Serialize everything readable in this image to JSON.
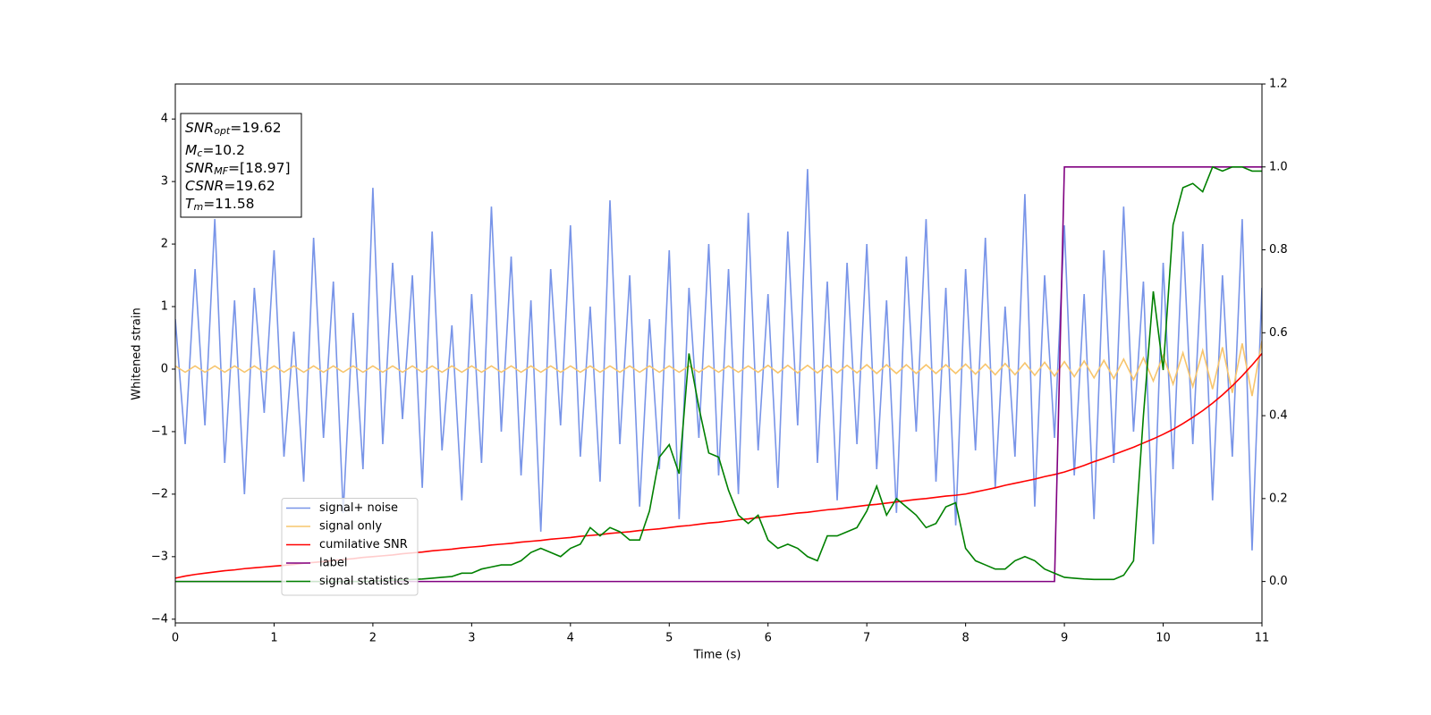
{
  "chart_data": {
    "type": "line",
    "xlabel": "Time (s)",
    "ylabel": "Whitened strain",
    "xlim": [
      0,
      11
    ],
    "xticks": [
      0,
      1,
      2,
      3,
      4,
      5,
      6,
      7,
      8,
      9,
      10,
      11
    ],
    "ylim": [
      -4.06,
      4.56
    ],
    "yticks": [
      {
        "value": -4,
        "label": "−4"
      },
      {
        "value": -3,
        "label": "−3"
      },
      {
        "value": -2,
        "label": "−2"
      },
      {
        "value": -1,
        "label": "−1"
      },
      0,
      1,
      2,
      3,
      4
    ],
    "y2lim": [
      -0.1,
      1.2
    ],
    "y2ticks": [
      {
        "value": 0,
        "label": "0.0"
      },
      0.2,
      0.4,
      0.6,
      0.8,
      {
        "value": 1,
        "label": "1.0"
      },
      1.2
    ],
    "legend_loc": "lower left",
    "annotation_box": [
      {
        "symbol": "SNR",
        "sub": "opt",
        "text": "=19.62"
      },
      {
        "symbol": "M",
        "sub": "c",
        "text": "=10.2"
      },
      {
        "symbol": "SNR",
        "sub": "MF",
        "text": "=[18.97]"
      },
      {
        "symbol": "CSNR",
        "text": "=19.62"
      },
      {
        "symbol": "T",
        "sub": "m",
        "text": "=11.58"
      }
    ],
    "x": [
      0,
      0.1,
      0.2,
      0.3,
      0.4,
      0.5,
      0.6,
      0.7,
      0.8,
      0.9,
      1,
      1.1,
      1.2,
      1.3,
      1.4,
      1.5,
      1.6,
      1.7,
      1.8,
      1.9,
      2,
      2.1,
      2.2,
      2.3,
      2.4,
      2.5,
      2.6,
      2.7,
      2.8,
      2.9,
      3,
      3.1,
      3.2,
      3.3,
      3.4,
      3.5,
      3.6,
      3.7,
      3.8,
      3.9,
      4,
      4.1,
      4.2,
      4.3,
      4.4,
      4.5,
      4.6,
      4.7,
      4.8,
      4.9,
      5,
      5.1,
      5.2,
      5.3,
      5.4,
      5.5,
      5.6,
      5.7,
      5.8,
      5.9,
      6,
      6.1,
      6.2,
      6.3,
      6.4,
      6.5,
      6.6,
      6.7,
      6.8,
      6.9,
      7,
      7.1,
      7.2,
      7.3,
      7.4,
      7.5,
      7.6,
      7.7,
      7.8,
      7.9,
      8,
      8.1,
      8.2,
      8.3,
      8.4,
      8.5,
      8.6,
      8.7,
      8.8,
      8.9,
      9,
      9.1,
      9.2,
      9.3,
      9.4,
      9.5,
      9.6,
      9.7,
      9.8,
      9.9,
      10,
      10.1,
      10.2,
      10.3,
      10.4,
      10.5,
      10.6,
      10.7,
      10.8,
      10.9,
      11
    ],
    "series": [
      {
        "name": "signal+ noise",
        "color": "#7894e8",
        "axis": "y",
        "values": [
          0.8,
          -1.2,
          1.6,
          -0.9,
          2.4,
          -1.5,
          1.1,
          -2.0,
          1.3,
          -0.7,
          1.9,
          -1.4,
          0.6,
          -1.8,
          2.1,
          -1.1,
          1.4,
          -2.3,
          0.9,
          -1.6,
          2.9,
          -1.2,
          1.7,
          -0.8,
          1.5,
          -1.9,
          2.2,
          -1.3,
          0.7,
          -2.1,
          1.2,
          -1.5,
          2.6,
          -1.0,
          1.8,
          -1.7,
          1.1,
          -2.6,
          1.6,
          -0.9,
          2.3,
          -1.4,
          1.0,
          -1.8,
          2.7,
          -1.2,
          1.5,
          -2.2,
          0.8,
          -1.6,
          1.9,
          -2.4,
          1.3,
          -1.1,
          2.0,
          -1.7,
          1.6,
          -2.0,
          2.5,
          -1.3,
          1.2,
          -1.9,
          2.2,
          -0.9,
          3.2,
          -1.5,
          1.4,
          -2.1,
          1.7,
          -1.2,
          2.0,
          -1.6,
          1.1,
          -2.3,
          1.8,
          -1.0,
          2.4,
          -1.8,
          1.3,
          -2.5,
          1.6,
          -1.3,
          2.1,
          -1.9,
          1.0,
          -1.4,
          2.8,
          -2.2,
          1.5,
          -1.1,
          2.3,
          -1.7,
          1.2,
          -2.4,
          1.9,
          -1.5,
          2.6,
          -1.0,
          1.4,
          -2.8,
          1.7,
          -1.6,
          2.2,
          -1.2,
          2.0,
          -2.1,
          1.5,
          -1.4,
          2.4,
          -2.9,
          1.3
        ]
      },
      {
        "name": "signal only",
        "color": "#f7c56d",
        "axis": "y",
        "values": [
          0.05,
          -0.05,
          0.05,
          -0.05,
          0.05,
          -0.05,
          0.05,
          -0.05,
          0.05,
          -0.05,
          0.05,
          -0.05,
          0.05,
          -0.05,
          0.05,
          -0.05,
          0.05,
          -0.05,
          0.05,
          -0.05,
          0.05,
          -0.05,
          0.05,
          -0.05,
          0.05,
          -0.05,
          0.05,
          -0.05,
          0.05,
          -0.05,
          0.05,
          -0.05,
          0.05,
          -0.05,
          0.05,
          -0.05,
          0.05,
          -0.05,
          0.05,
          -0.05,
          0.05,
          -0.05,
          0.05,
          -0.05,
          0.05,
          -0.05,
          0.05,
          -0.05,
          0.05,
          -0.05,
          0.05,
          -0.05,
          0.05,
          -0.05,
          0.05,
          -0.05,
          0.05,
          -0.05,
          0.05,
          -0.05,
          0.06,
          -0.06,
          0.06,
          -0.06,
          0.06,
          -0.06,
          0.06,
          -0.06,
          0.06,
          -0.06,
          0.07,
          -0.07,
          0.07,
          -0.07,
          0.07,
          -0.07,
          0.07,
          -0.07,
          0.07,
          -0.07,
          0.08,
          -0.08,
          0.08,
          -0.09,
          0.09,
          -0.09,
          0.1,
          -0.1,
          0.11,
          -0.11,
          0.12,
          -0.12,
          0.13,
          -0.14,
          0.14,
          -0.15,
          0.16,
          -0.17,
          0.18,
          -0.19,
          0.22,
          -0.24,
          0.26,
          -0.28,
          0.3,
          -0.32,
          0.35,
          -0.38,
          0.41,
          -0.43,
          0.45
        ]
      },
      {
        "name": "cumilative SNR",
        "color": "#ff0000",
        "axis": "y2",
        "values": [
          0.008,
          0.013,
          0.017,
          0.02,
          0.023,
          0.026,
          0.028,
          0.031,
          0.033,
          0.035,
          0.037,
          0.039,
          0.041,
          0.044,
          0.046,
          0.048,
          0.051,
          0.053,
          0.055,
          0.058,
          0.06,
          0.062,
          0.064,
          0.067,
          0.069,
          0.071,
          0.074,
          0.076,
          0.078,
          0.081,
          0.083,
          0.085,
          0.088,
          0.09,
          0.092,
          0.095,
          0.097,
          0.099,
          0.102,
          0.104,
          0.106,
          0.109,
          0.111,
          0.113,
          0.116,
          0.118,
          0.12,
          0.123,
          0.125,
          0.127,
          0.13,
          0.133,
          0.135,
          0.138,
          0.141,
          0.143,
          0.146,
          0.149,
          0.151,
          0.154,
          0.157,
          0.159,
          0.162,
          0.165,
          0.167,
          0.17,
          0.173,
          0.175,
          0.178,
          0.181,
          0.184,
          0.186,
          0.189,
          0.192,
          0.195,
          0.198,
          0.2,
          0.203,
          0.206,
          0.208,
          0.211,
          0.216,
          0.221,
          0.226,
          0.232,
          0.237,
          0.242,
          0.247,
          0.253,
          0.258,
          0.264,
          0.272,
          0.28,
          0.289,
          0.297,
          0.306,
          0.315,
          0.324,
          0.334,
          0.344,
          0.355,
          0.367,
          0.381,
          0.396,
          0.412,
          0.43,
          0.45,
          0.472,
          0.496,
          0.522,
          0.55
        ]
      },
      {
        "name": "label",
        "color": "#800080",
        "axis": "y2",
        "values": [
          0,
          0,
          0,
          0,
          0,
          0,
          0,
          0,
          0,
          0,
          0,
          0,
          0,
          0,
          0,
          0,
          0,
          0,
          0,
          0,
          0,
          0,
          0,
          0,
          0,
          0,
          0,
          0,
          0,
          0,
          0,
          0,
          0,
          0,
          0,
          0,
          0,
          0,
          0,
          0,
          0,
          0,
          0,
          0,
          0,
          0,
          0,
          0,
          0,
          0,
          0,
          0,
          0,
          0,
          0,
          0,
          0,
          0,
          0,
          0,
          0,
          0,
          0,
          0,
          0,
          0,
          0,
          0,
          0,
          0,
          0,
          0,
          0,
          0,
          0,
          0,
          0,
          0,
          0,
          0,
          0,
          0,
          0,
          0,
          0,
          0,
          0,
          0,
          0,
          0,
          1,
          1,
          1,
          1,
          1,
          1,
          1,
          1,
          1,
          1,
          1,
          1,
          1,
          1,
          1,
          1,
          1,
          1,
          1,
          1,
          1
        ]
      },
      {
        "name": "signal statistics",
        "color": "#008000",
        "axis": "y2",
        "values": [
          0,
          0,
          0,
          0,
          0,
          0,
          0,
          0,
          0,
          0,
          0,
          0,
          0,
          0,
          0,
          0,
          0,
          0,
          0,
          0,
          0.001,
          0.002,
          0.003,
          0.004,
          0.005,
          0.006,
          0.008,
          0.01,
          0.012,
          0.02,
          0.02,
          0.03,
          0.035,
          0.04,
          0.04,
          0.05,
          0.07,
          0.08,
          0.07,
          0.06,
          0.08,
          0.09,
          0.13,
          0.11,
          0.13,
          0.12,
          0.1,
          0.1,
          0.17,
          0.3,
          0.33,
          0.26,
          0.55,
          0.42,
          0.31,
          0.3,
          0.22,
          0.16,
          0.14,
          0.16,
          0.1,
          0.08,
          0.09,
          0.08,
          0.06,
          0.05,
          0.11,
          0.11,
          0.12,
          0.13,
          0.17,
          0.23,
          0.16,
          0.2,
          0.18,
          0.16,
          0.13,
          0.14,
          0.18,
          0.19,
          0.08,
          0.05,
          0.04,
          0.03,
          0.03,
          0.05,
          0.06,
          0.05,
          0.03,
          0.02,
          0.01,
          0.008,
          0.006,
          0.005,
          0.005,
          0.005,
          0.015,
          0.05,
          0.4,
          0.7,
          0.51,
          0.86,
          0.95,
          0.96,
          0.94,
          1.0,
          0.99,
          1.0,
          1.0,
          0.99,
          0.99
        ]
      }
    ]
  }
}
